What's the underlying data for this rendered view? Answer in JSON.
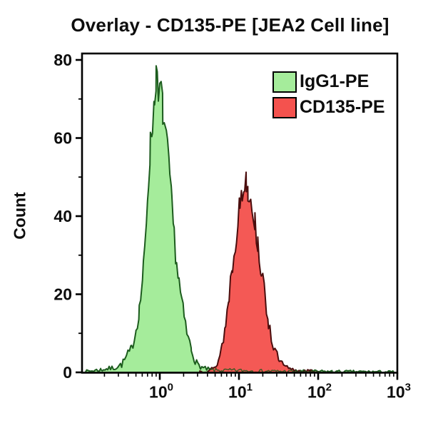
{
  "title": "Overlay - CD135-PE [JEA2 Cell line]",
  "axes": {
    "y_label": "Count",
    "y_ticks": [
      0,
      20,
      40,
      60,
      80
    ],
    "y_minor_ticks": [
      10,
      30,
      50,
      70
    ],
    "y_range": [
      0,
      80
    ],
    "x_tick_exponents": [
      0,
      1,
      2,
      3
    ],
    "x_tick_labels": [
      "10^0",
      "10^1",
      "10^2",
      "10^3"
    ],
    "x_range": [
      0.1,
      1000
    ],
    "x_scale": "log"
  },
  "legend": [
    {
      "label": "IgG1-PE",
      "color": "#a5ec9b",
      "edge": "#1d5c1f"
    },
    {
      "label": "CD135-PE",
      "color": "#f4524e",
      "edge": "#4a0d0d"
    }
  ],
  "chart_data": {
    "type": "area",
    "subtype": "flow-cytometry-histogram-overlay",
    "title": "Overlay - CD135-PE [JEA2 Cell line]",
    "xlabel": "",
    "ylabel": "Count",
    "xlim": [
      0.1,
      1000
    ],
    "ylim": [
      0,
      80
    ],
    "x_scale": "log",
    "grid": false,
    "legend_position": "top-right-inside",
    "series": [
      {
        "name": "IgG1-PE",
        "fill": "#a5ec9b",
        "edge": "#1d5c1f",
        "peak_count": 77,
        "peak_x": 0.9,
        "points": [
          [
            0.11,
            0.2
          ],
          [
            0.14,
            0.4
          ],
          [
            0.18,
            0.7
          ],
          [
            0.22,
            0.9
          ],
          [
            0.27,
            1.2
          ],
          [
            0.33,
            2
          ],
          [
            0.38,
            4
          ],
          [
            0.44,
            6
          ],
          [
            0.5,
            11
          ],
          [
            0.55,
            16
          ],
          [
            0.58,
            20
          ],
          [
            0.62,
            26
          ],
          [
            0.65,
            32
          ],
          [
            0.7,
            45
          ],
          [
            0.72,
            50
          ],
          [
            0.76,
            58
          ],
          [
            0.81,
            64
          ],
          [
            0.86,
            70
          ],
          [
            0.9,
            77
          ],
          [
            0.93,
            73
          ],
          [
            0.96,
            69
          ],
          [
            1.0,
            71
          ],
          [
            1.04,
            73
          ],
          [
            1.09,
            67
          ],
          [
            1.16,
            62
          ],
          [
            1.25,
            56
          ],
          [
            1.34,
            50
          ],
          [
            1.42,
            42
          ],
          [
            1.52,
            35
          ],
          [
            1.63,
            28
          ],
          [
            1.75,
            23
          ],
          [
            1.89,
            18
          ],
          [
            2.03,
            14
          ],
          [
            2.2,
            10
          ],
          [
            2.5,
            6
          ],
          [
            2.8,
            3
          ],
          [
            3.0,
            2
          ],
          [
            3.6,
            1
          ],
          [
            4.5,
            0.6
          ],
          [
            6,
            0.5
          ],
          [
            9,
            0.5
          ],
          [
            15,
            0.4
          ],
          [
            25,
            0.3
          ],
          [
            60,
            0.25
          ],
          [
            150,
            0.2
          ],
          [
            400,
            0.15
          ],
          [
            900,
            0.1
          ]
        ]
      },
      {
        "name": "CD135-PE",
        "fill": "#f4524e",
        "edge": "#4a0d0d",
        "peak_count": 50,
        "peak_x": 12.4,
        "points": [
          [
            3.2,
            0.3
          ],
          [
            4.0,
            0.5
          ],
          [
            4.9,
            1
          ],
          [
            5.5,
            3
          ],
          [
            6.1,
            7
          ],
          [
            6.8,
            12
          ],
          [
            7.5,
            20
          ],
          [
            8.3,
            28
          ],
          [
            9.3,
            36
          ],
          [
            10.3,
            43
          ],
          [
            11.0,
            46
          ],
          [
            11.8,
            48
          ],
          [
            12.4,
            50
          ],
          [
            13.0,
            47
          ],
          [
            13.5,
            46
          ],
          [
            14.6,
            44
          ],
          [
            15.9,
            38
          ],
          [
            17.3,
            33
          ],
          [
            19.2,
            26
          ],
          [
            21.3,
            19
          ],
          [
            23.6,
            13
          ],
          [
            26.2,
            8
          ],
          [
            29.1,
            5
          ],
          [
            32.3,
            3
          ],
          [
            37.3,
            1.5
          ],
          [
            44,
            0.8
          ],
          [
            55,
            0.4
          ],
          [
            80,
            0.3
          ],
          [
            100,
            0.2
          ]
        ]
      }
    ]
  }
}
